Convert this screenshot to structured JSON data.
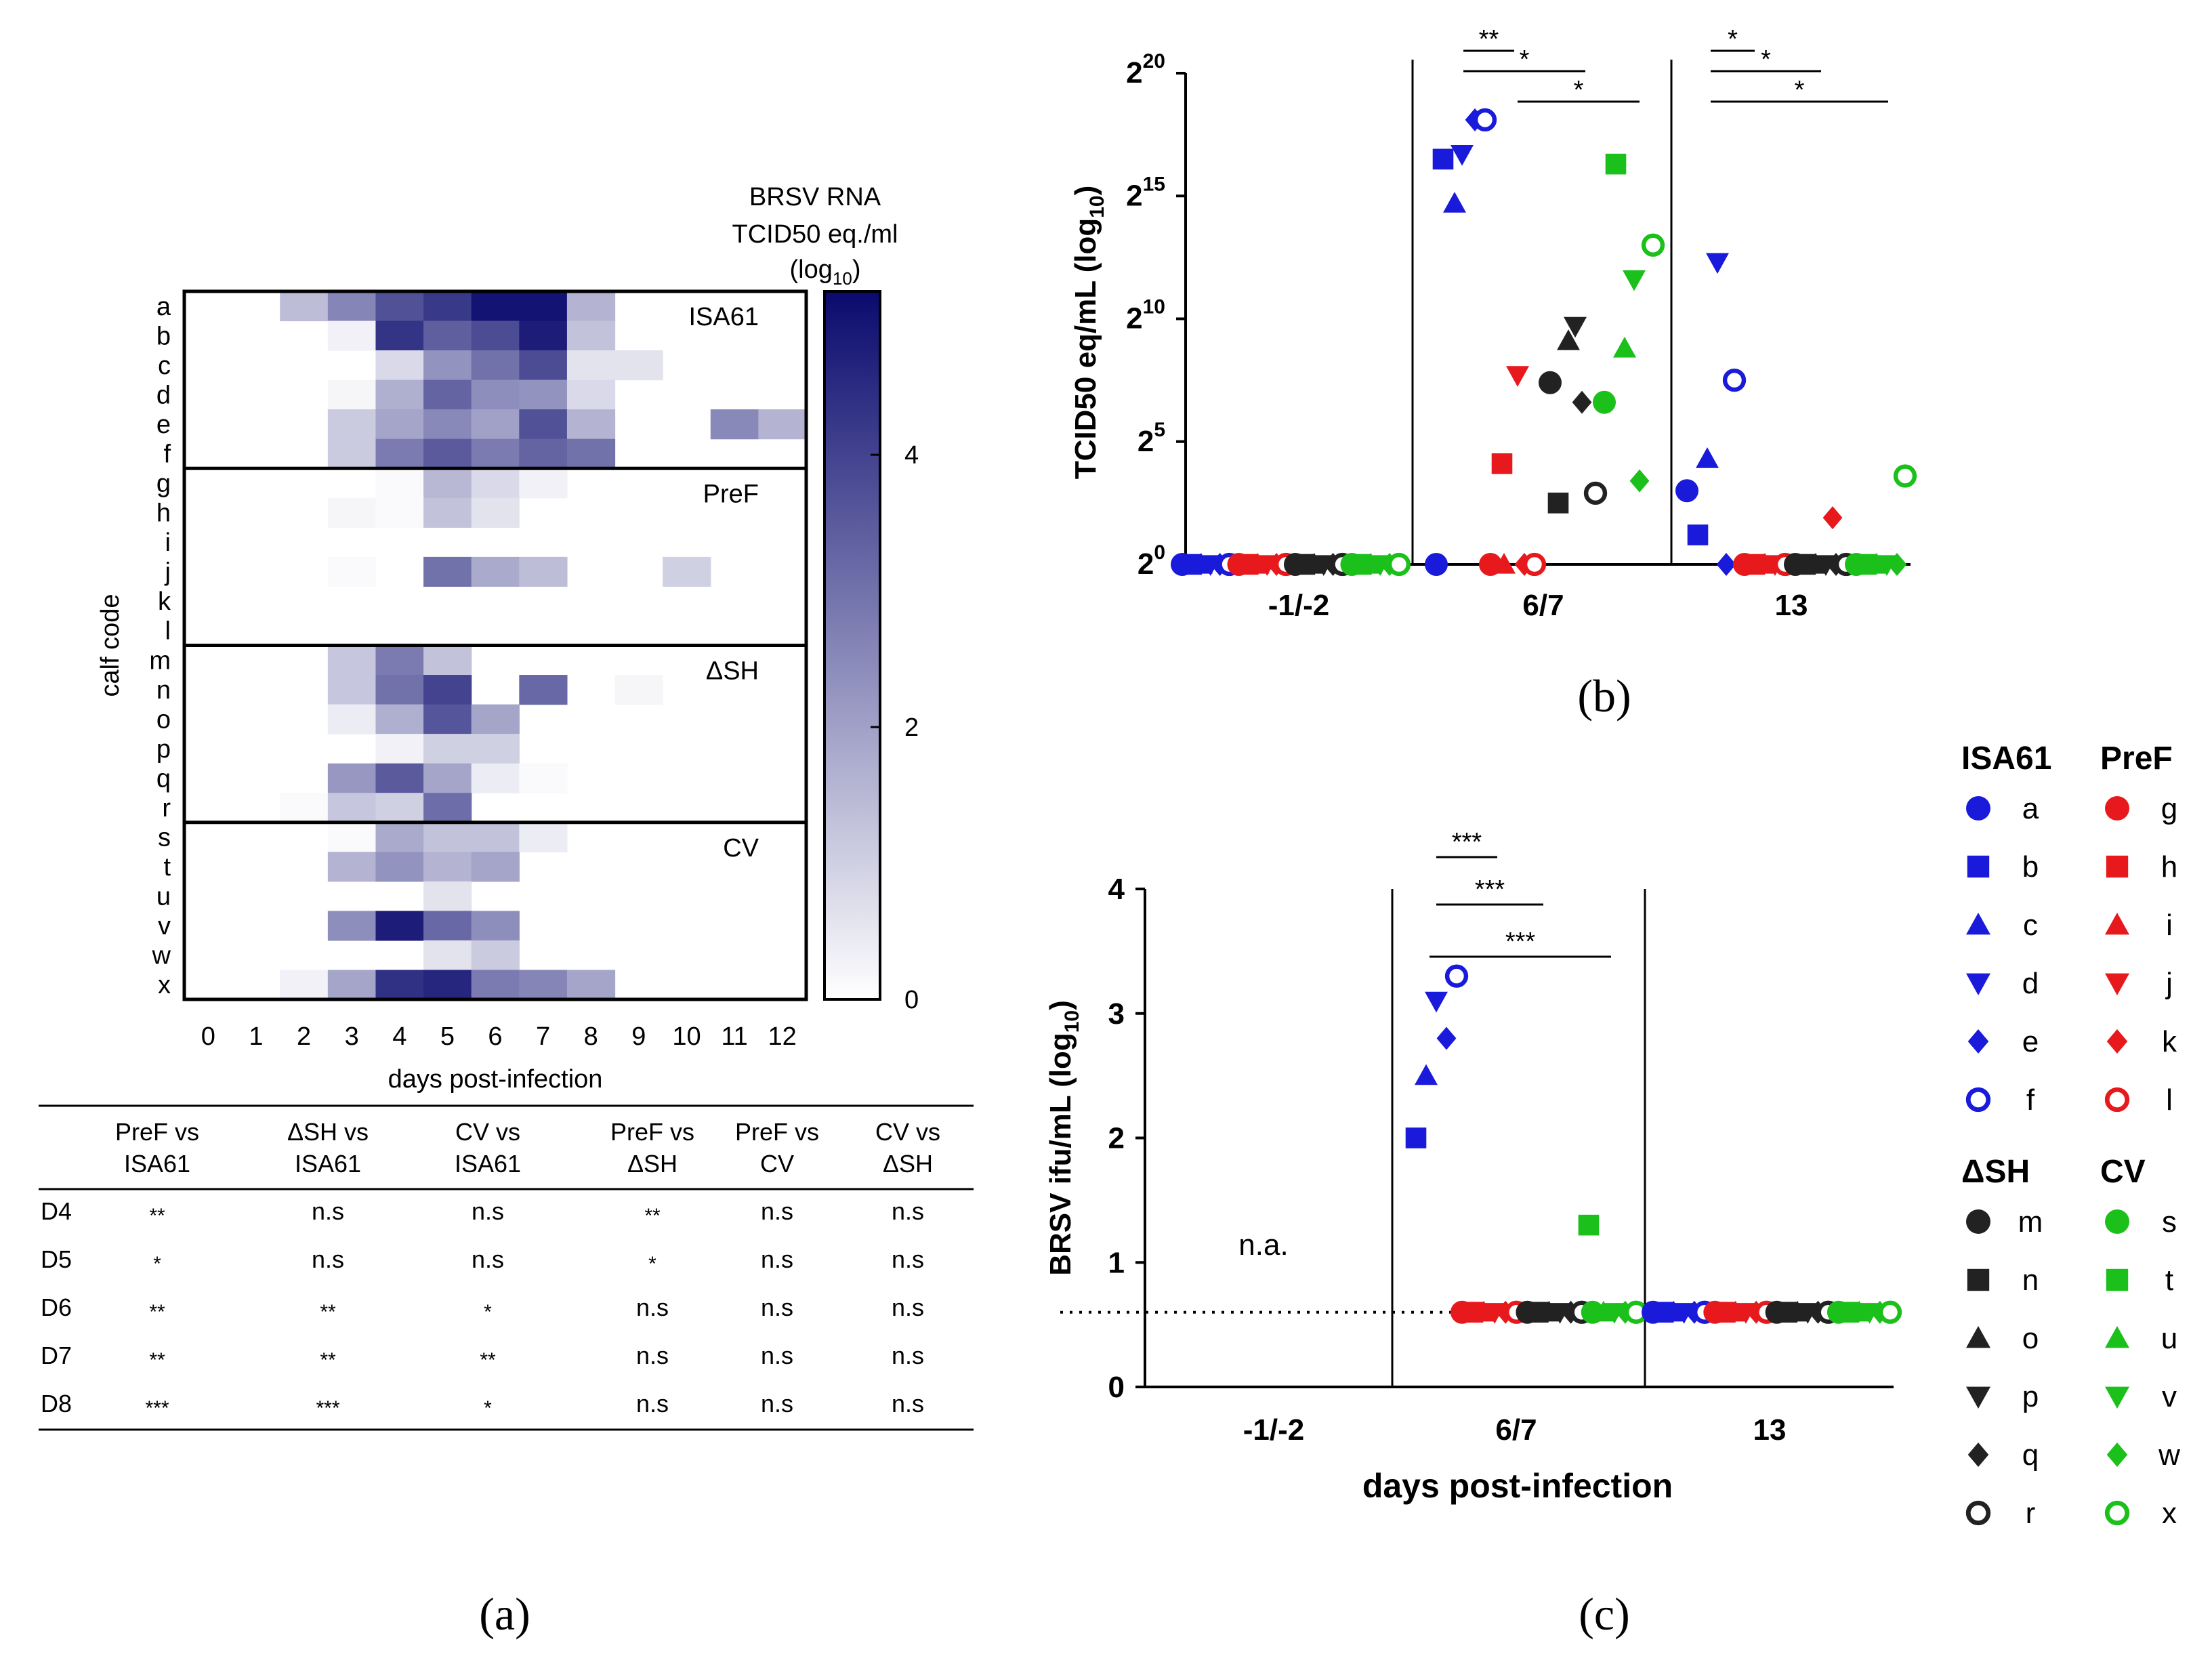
{
  "colors": {
    "ISA61": "#1a1adb",
    "PreF": "#e8191c",
    "dSH": "#222222",
    "CV": "#1bc01b",
    "heat_max": "#0a0a6e",
    "heat_min": "#ffffff"
  },
  "panel_a": {
    "chart_data": {
      "type": "heatmap",
      "colorbar_title": [
        "BRSV RNA",
        "TCID50 eq./ml"
      ],
      "colorbar_unit": "(log10)",
      "colorbar_ticks": [
        0,
        2,
        4
      ],
      "colorbar_range": [
        0,
        5.2
      ],
      "ylabel": "calf code",
      "xlabel": "days post-infection",
      "x": [
        0,
        1,
        2,
        3,
        4,
        5,
        6,
        7,
        8,
        9,
        10,
        11,
        12
      ],
      "rows": [
        "a",
        "b",
        "c",
        "d",
        "e",
        "f",
        "g",
        "h",
        "i",
        "j",
        "k",
        "l",
        "m",
        "n",
        "o",
        "p",
        "q",
        "r",
        "s",
        "t",
        "u",
        "v",
        "w",
        "x"
      ],
      "groups": [
        {
          "name": "ISA61",
          "rows": [
            0,
            5
          ]
        },
        {
          "name": "PreF",
          "rows": [
            6,
            11
          ]
        },
        {
          "name": "ΔSH",
          "rows": [
            12,
            17
          ]
        },
        {
          "name": "CV",
          "rows": [
            18,
            23
          ]
        }
      ],
      "values": [
        [
          0,
          0,
          1.4,
          2.6,
          3.7,
          4.2,
          5.0,
          5.0,
          1.6,
          0,
          0,
          0,
          0
        ],
        [
          0,
          0,
          0,
          0.3,
          4.3,
          3.4,
          3.8,
          4.8,
          1.3,
          0,
          0,
          0,
          0
        ],
        [
          0,
          0,
          0,
          0,
          0.8,
          2.3,
          3.0,
          3.8,
          0.6,
          0.6,
          0,
          0,
          0
        ],
        [
          0,
          0,
          0,
          0.2,
          1.7,
          3.3,
          2.4,
          2.3,
          0.8,
          0,
          0,
          0,
          0
        ],
        [
          0,
          0,
          0,
          1.1,
          1.9,
          2.5,
          2.0,
          3.7,
          1.6,
          0,
          0,
          2.5,
          1.6
        ],
        [
          0,
          0,
          0,
          1.1,
          2.8,
          3.5,
          2.8,
          3.3,
          3.0,
          0,
          0,
          0,
          0
        ],
        [
          0,
          0,
          0,
          0,
          0.1,
          1.5,
          0.8,
          0.3,
          0,
          0,
          0,
          0,
          0
        ],
        [
          0,
          0,
          0,
          0.2,
          0.1,
          1.3,
          0.6,
          0,
          0,
          0,
          0,
          0,
          0
        ],
        [
          0,
          0,
          0,
          0,
          0,
          0,
          0,
          0,
          0,
          0,
          0,
          0,
          0
        ],
        [
          0,
          0,
          0,
          0.1,
          0,
          3.0,
          1.8,
          1.4,
          0,
          0,
          1.0,
          0,
          0
        ],
        [
          0,
          0,
          0,
          0,
          0,
          0,
          0,
          0,
          0,
          0,
          0,
          0,
          0
        ],
        [
          0,
          0,
          0,
          0,
          0,
          0,
          0,
          0,
          0,
          0,
          0,
          0,
          0
        ],
        [
          0,
          0,
          0,
          1.2,
          2.8,
          1.3,
          0,
          0,
          0,
          0,
          0,
          0,
          0
        ],
        [
          0,
          0,
          0,
          1.2,
          3.0,
          4.0,
          0,
          3.2,
          0,
          0.2,
          0,
          0,
          0
        ],
        [
          0,
          0,
          0,
          0.4,
          1.7,
          3.6,
          1.9,
          0,
          0,
          0,
          0,
          0,
          0
        ],
        [
          0,
          0,
          0,
          0,
          0.3,
          1.0,
          1.0,
          0,
          0,
          0,
          0,
          0,
          0
        ],
        [
          0,
          0,
          0,
          2.2,
          3.5,
          1.9,
          0.4,
          0.1,
          0,
          0,
          0,
          0,
          0
        ],
        [
          0,
          0,
          0.1,
          1.2,
          1.0,
          3.1,
          0,
          0,
          0,
          0,
          0,
          0,
          0
        ],
        [
          0,
          0,
          0,
          0.1,
          1.8,
          1.3,
          1.3,
          0.4,
          0,
          0,
          0,
          0,
          0
        ],
        [
          0,
          0,
          0,
          1.6,
          2.3,
          1.6,
          1.9,
          0,
          0,
          0,
          0,
          0,
          0
        ],
        [
          0,
          0,
          0,
          0,
          0,
          0.6,
          0,
          0,
          0,
          0,
          0,
          0,
          0
        ],
        [
          0,
          0,
          0,
          2.4,
          4.8,
          3.2,
          2.4,
          0,
          0,
          0,
          0,
          0,
          0
        ],
        [
          0,
          0,
          0,
          0,
          0,
          0.6,
          1.1,
          0,
          0,
          0,
          0,
          0,
          0
        ],
        [
          0,
          0,
          0.3,
          1.9,
          4.4,
          4.6,
          2.8,
          2.6,
          1.9,
          0,
          0,
          0,
          0
        ]
      ]
    },
    "caption": "(a)",
    "table": {
      "headers": [
        [
          "PreF vs",
          "ISA61"
        ],
        [
          "ΔSH vs",
          "ISA61"
        ],
        [
          "CV vs",
          "ISA61"
        ],
        [
          "PreF vs",
          "ΔSH"
        ],
        [
          "PreF vs",
          "CV"
        ],
        [
          "CV vs",
          "ΔSH"
        ]
      ],
      "rows": [
        {
          "day": "D4",
          "cells": [
            "**",
            "n.s",
            "n.s",
            "**",
            "n.s",
            "n.s"
          ]
        },
        {
          "day": "D5",
          "cells": [
            "*",
            "n.s",
            "n.s",
            "*",
            "n.s",
            "n.s"
          ]
        },
        {
          "day": "D6",
          "cells": [
            "**",
            "**",
            "*",
            "n.s",
            "n.s",
            "n.s"
          ]
        },
        {
          "day": "D7",
          "cells": [
            "**",
            "**",
            "**",
            "n.s",
            "n.s",
            "n.s"
          ]
        },
        {
          "day": "D8",
          "cells": [
            "***",
            "***",
            "*",
            "n.s",
            "n.s",
            "n.s"
          ]
        }
      ]
    }
  },
  "panel_b": {
    "caption": "(b)",
    "chart_data": {
      "type": "scatter",
      "ylabel": "TCID50 eq/mL (log10)",
      "y_scale": "log2",
      "yticks": [
        {
          "v": 0,
          "label": "2",
          "exp": "0"
        },
        {
          "v": 5,
          "label": "2",
          "exp": "5"
        },
        {
          "v": 10,
          "label": "2",
          "exp": "10"
        },
        {
          "v": 15,
          "label": "2",
          "exp": "15"
        },
        {
          "v": 20,
          "label": "2",
          "exp": "20"
        }
      ],
      "categories": [
        "-1/-2",
        "6/7",
        "13"
      ],
      "ylim": [
        0,
        20
      ],
      "points": {
        "6/7": [
          {
            "calf": "a",
            "y": 0
          },
          {
            "calf": "b",
            "y": 16.5
          },
          {
            "calf": "c",
            "y": 14.7
          },
          {
            "calf": "d",
            "y": 16.7
          },
          {
            "calf": "e",
            "y": 18.1
          },
          {
            "calf": "f",
            "y": 18.1
          },
          {
            "calf": "g",
            "y": 0
          },
          {
            "calf": "h",
            "y": 4.1
          },
          {
            "calf": "i",
            "y": 0
          },
          {
            "calf": "j",
            "y": 7.7
          },
          {
            "calf": "k",
            "y": 0
          },
          {
            "calf": "l",
            "y": 0
          },
          {
            "calf": "m",
            "y": 7.4
          },
          {
            "calf": "n",
            "y": 2.5
          },
          {
            "calf": "o",
            "y": 9.1
          },
          {
            "calf": "p",
            "y": 9.7
          },
          {
            "calf": "q",
            "y": 6.6
          },
          {
            "calf": "r",
            "y": 2.9
          },
          {
            "calf": "s",
            "y": 6.6
          },
          {
            "calf": "t",
            "y": 16.3
          },
          {
            "calf": "u",
            "y": 8.8
          },
          {
            "calf": "v",
            "y": 11.6
          },
          {
            "calf": "w",
            "y": 3.4
          },
          {
            "calf": "x",
            "y": 13.0
          }
        ],
        "13": [
          {
            "calf": "a",
            "y": 3.0
          },
          {
            "calf": "b",
            "y": 1.2
          },
          {
            "calf": "c",
            "y": 4.3
          },
          {
            "calf": "d",
            "y": 12.3
          },
          {
            "calf": "e",
            "y": 0
          },
          {
            "calf": "f",
            "y": 7.5
          },
          {
            "calf": "k",
            "y": 1.9
          },
          {
            "calf": "x",
            "y": 3.6
          }
        ]
      },
      "significance": [
        {
          "panel": "6/7",
          "label": "**",
          "level": 0
        },
        {
          "panel": "6/7",
          "label": "*",
          "level": 1
        },
        {
          "panel": "6/7",
          "label": "*",
          "level": 2
        },
        {
          "panel": "13",
          "label": "*",
          "level": 0
        },
        {
          "panel": "13",
          "label": "*",
          "level": 1
        },
        {
          "panel": "13",
          "label": "*",
          "level": 2
        }
      ]
    }
  },
  "panel_c": {
    "caption": "(c)",
    "chart_data": {
      "type": "scatter",
      "ylabel": "BRSV ifu/mL (log10)",
      "xlabel": "days post-infection",
      "categories": [
        "-1/-2",
        "6/7",
        "13"
      ],
      "ylim": [
        0,
        4
      ],
      "yticks": [
        0,
        1,
        2,
        3,
        4
      ],
      "lod": 0.6,
      "na_label": "n.a.",
      "points": {
        "6/7": [
          {
            "calf": "b",
            "y": 2.0
          },
          {
            "calf": "c",
            "y": 2.5
          },
          {
            "calf": "d",
            "y": 3.1
          },
          {
            "calf": "e",
            "y": 2.8
          },
          {
            "calf": "f",
            "y": 3.3
          },
          {
            "calf": "t",
            "y": 1.3
          }
        ]
      },
      "significance": [
        {
          "label": "***",
          "level": 0
        },
        {
          "label": "***",
          "level": 1
        },
        {
          "label": "***",
          "level": 2
        }
      ]
    }
  },
  "legend": {
    "groups": [
      {
        "name": "ISA61",
        "color_key": "ISA61",
        "filled": true,
        "items": [
          "a",
          "b",
          "c",
          "d",
          "e",
          "f"
        ]
      },
      {
        "name": "PreF",
        "color_key": "PreF",
        "filled": true,
        "items": [
          "g",
          "h",
          "i",
          "j",
          "k",
          "l"
        ]
      },
      {
        "name": "ΔSH",
        "color_key": "dSH",
        "filled": true,
        "items": [
          "m",
          "n",
          "o",
          "p",
          "q",
          "r"
        ]
      },
      {
        "name": "CV",
        "color_key": "CV",
        "filled": true,
        "items": [
          "s",
          "t",
          "u",
          "v",
          "w",
          "x"
        ]
      }
    ],
    "shapes": [
      "circle",
      "square",
      "triangle-up",
      "triangle-down",
      "diamond",
      "circle-open"
    ]
  }
}
